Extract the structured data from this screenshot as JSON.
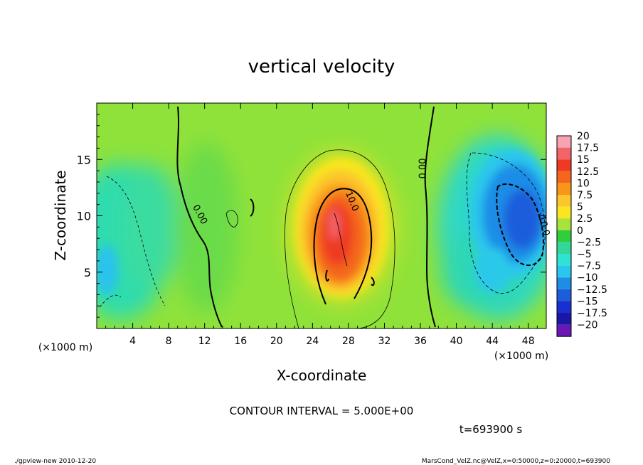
{
  "chart_data": {
    "type": "heatmap",
    "title": "vertical velocity",
    "xlabel": "X-coordinate",
    "ylabel": "Z-coordinate",
    "x_unit_left": "(×1000 m)",
    "x_unit_right": "(×1000 m)",
    "x_ticks": [
      4,
      8,
      12,
      16,
      20,
      24,
      28,
      32,
      36,
      40,
      44,
      48
    ],
    "y_ticks": [
      5,
      10,
      15
    ],
    "xlim": [
      0,
      50
    ],
    "ylim": [
      0,
      20
    ],
    "colorbar": {
      "labels": [
        "20",
        "17.5",
        "15",
        "12.5",
        "10",
        "7.5",
        "5",
        "2.5",
        "0",
        "−2.5",
        "−5",
        "−7.5",
        "−10",
        "−12.5",
        "−15",
        "−17.5",
        "−20"
      ],
      "colors": [
        "#f8a3b3",
        "#f36468",
        "#ee3a24",
        "#f4661d",
        "#f89619",
        "#fbc52e",
        "#fae61e",
        "#a9e23a",
        "#2ecf3a",
        "#33d79b",
        "#2fe2d3",
        "#29c6ee",
        "#1f8de6",
        "#1b5ddb",
        "#1a2fcf",
        "#1a17a6",
        "#6a17b6"
      ]
    },
    "contour_labels": [
      {
        "text": "0.00",
        "x": 11.2,
        "z": 10.0,
        "angle": 62
      },
      {
        "text": "10.0",
        "x": 28.1,
        "z": 11.2,
        "angle": 68
      },
      {
        "text": "0.00",
        "x": 36.6,
        "z": 14.2,
        "angle": -90
      },
      {
        "text": "-10.0",
        "x": 49.4,
        "z": 9.2,
        "angle": 75
      }
    ],
    "contour_interval_text": "CONTOUR INTERVAL = 5.000E+00",
    "time_text": "t=693900 s"
  },
  "footer": {
    "left": "./gpview-new  2010-12-20",
    "right": "MarsCond_VelZ.nc@VelZ,x=0:50000,z=0:20000,t=693900"
  }
}
